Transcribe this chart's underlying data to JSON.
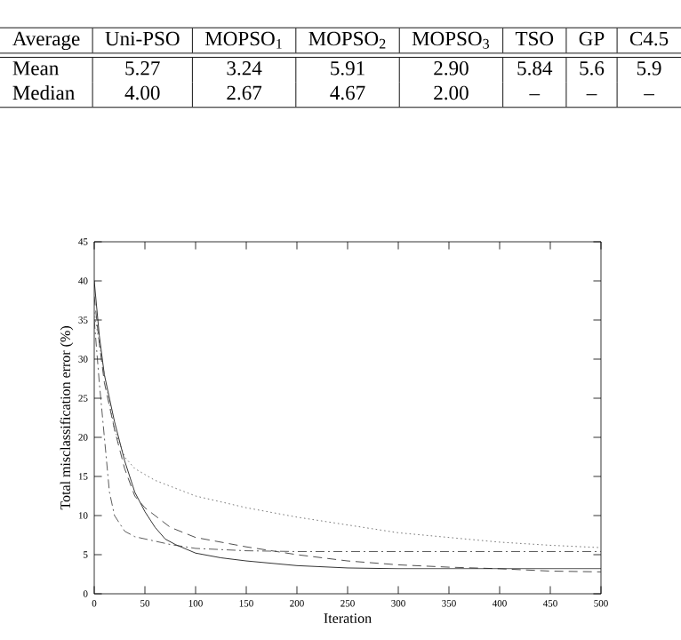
{
  "chart_data": [
    {
      "type": "other",
      "categories": [
        "Average",
        "Uni-PSO",
        "MOPSO$_{1}$",
        "MOPSO$_{2}$",
        "MOPSO$_{3}$",
        "TSO",
        "GP",
        "C4.5"
      ],
      "annotations": [
        "Mean",
        "5.27",
        "3.24",
        "5.91",
        "2.90",
        "5.84",
        "5.6",
        "5.9",
        "Median",
        "4.00",
        "2.67",
        "4.67",
        "2.00",
        "–",
        "–",
        "–"
      ]
    },
    {
      "type": "line",
      "xlabel": "Iteration",
      "ylabel": "Total misclassification error (%)",
      "xlim": [
        0,
        500
      ],
      "ylim": [
        0,
        45
      ],
      "xticks": [
        0,
        50,
        100,
        150,
        200,
        250,
        300,
        350,
        400,
        450,
        500
      ],
      "yticks": [
        0,
        5,
        10,
        15,
        20,
        25,
        30,
        35,
        40,
        45
      ],
      "series": [
        {
          "color": "#000000",
          "line_style": "solid",
          "x": [
            0,
            5,
            10,
            20,
            30,
            40,
            50,
            60,
            70,
            80,
            100,
            125,
            150,
            200,
            250,
            300,
            400,
            500
          ],
          "values": [
            40,
            33,
            28,
            22,
            17,
            13,
            10.5,
            8.5,
            7,
            6.3,
            5.2,
            4.6,
            4.2,
            3.6,
            3.3,
            3.2,
            3.2,
            3.2
          ]
        },
        {
          "color": "#222222",
          "line_style": "dashed",
          "x": [
            0,
            5,
            10,
            20,
            30,
            40,
            50,
            75,
            100,
            150,
            200,
            250,
            300,
            350,
            400,
            450,
            500
          ],
          "values": [
            38,
            32,
            27,
            21,
            16,
            12.5,
            11,
            8.5,
            7.2,
            6,
            5,
            4.2,
            3.7,
            3.4,
            3.2,
            2.9,
            2.8
          ]
        },
        {
          "color": "#555555",
          "line_style": "dotted",
          "x": [
            0,
            10,
            20,
            30,
            40,
            60,
            100,
            150,
            200,
            250,
            300,
            350,
            400,
            450,
            500
          ],
          "values": [
            36,
            28,
            21,
            17.5,
            16,
            14.5,
            12.5,
            11,
            9.8,
            8.8,
            7.8,
            7.2,
            6.6,
            6.2,
            5.9
          ]
        },
        {
          "color": "#333333",
          "line_style": "dashdot",
          "x": [
            0,
            5,
            10,
            15,
            20,
            30,
            40,
            75,
            100,
            150,
            200,
            300,
            400,
            500
          ],
          "values": [
            35,
            27,
            20,
            13,
            10,
            8,
            7.3,
            6.3,
            5.8,
            5.5,
            5.4,
            5.4,
            5.4,
            5.4
          ]
        }
      ]
    }
  ]
}
